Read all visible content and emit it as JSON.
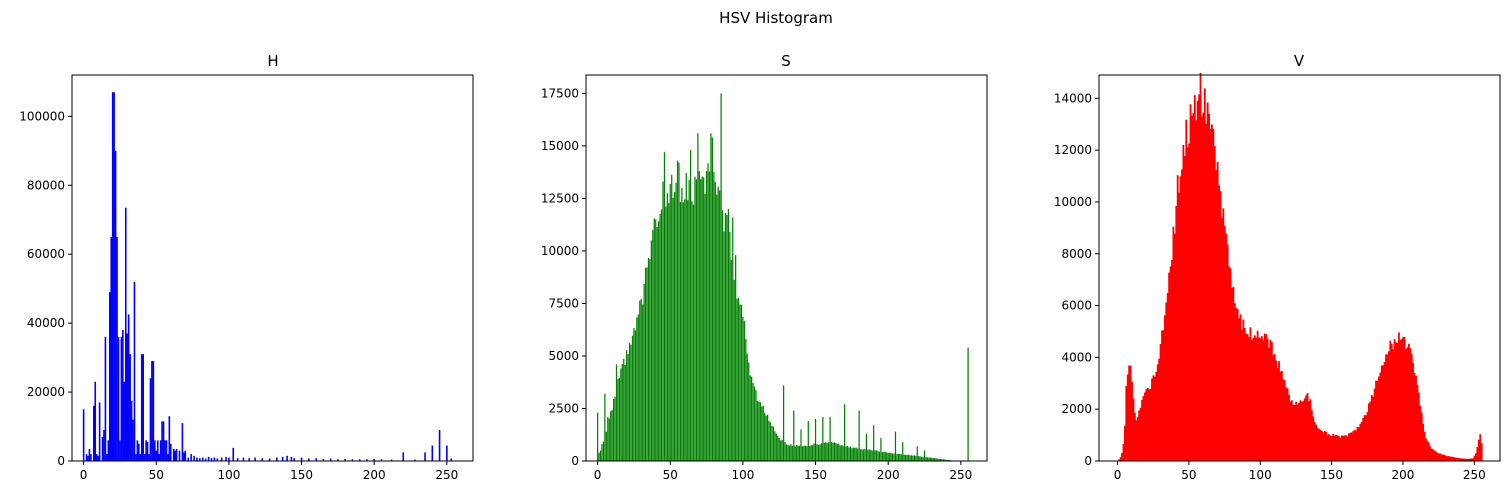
{
  "figure": {
    "suptitle": "HSV Histogram"
  },
  "chart_data": [
    {
      "type": "bar",
      "title": "H",
      "color": "#0000ff",
      "xlabel": "",
      "ylabel": "",
      "xlim": [
        -8,
        268
      ],
      "ylim": [
        0,
        112000
      ],
      "xticks": [
        0,
        50,
        100,
        150,
        200,
        250
      ],
      "yticks": [
        0,
        20000,
        40000,
        60000,
        80000,
        100000
      ],
      "spikes": [
        [
          0,
          15000
        ],
        [
          2,
          2000
        ],
        [
          3,
          1500
        ],
        [
          4,
          3500
        ],
        [
          5,
          2000
        ],
        [
          7,
          16000
        ],
        [
          8,
          23000
        ],
        [
          9,
          2000
        ],
        [
          10,
          1500
        ],
        [
          11,
          17000
        ],
        [
          13,
          7000
        ],
        [
          14,
          9000
        ],
        [
          15,
          36000
        ],
        [
          16,
          2000
        ],
        [
          17,
          6000
        ],
        [
          18,
          49000
        ],
        [
          19,
          65000
        ],
        [
          20,
          107000
        ],
        [
          21,
          107000
        ],
        [
          22,
          90000
        ],
        [
          23,
          65000
        ],
        [
          24,
          36000
        ],
        [
          25,
          6000
        ],
        [
          26,
          36000
        ],
        [
          27,
          38000
        ],
        [
          28,
          23000
        ],
        [
          29,
          73500
        ],
        [
          30,
          37000
        ],
        [
          31,
          42500
        ],
        [
          32,
          31000
        ],
        [
          33,
          17500
        ],
        [
          34,
          12000
        ],
        [
          35,
          52000
        ],
        [
          36,
          2000
        ],
        [
          37,
          6000
        ],
        [
          38,
          5000
        ],
        [
          39,
          2000
        ],
        [
          40,
          31000
        ],
        [
          41,
          31000
        ],
        [
          42,
          2000
        ],
        [
          43,
          6000
        ],
        [
          44,
          5500
        ],
        [
          45,
          2000
        ],
        [
          46,
          24000
        ],
        [
          47,
          29000
        ],
        [
          48,
          29000
        ],
        [
          49,
          6000
        ],
        [
          50,
          3000
        ],
        [
          51,
          6000
        ],
        [
          52,
          2000
        ],
        [
          53,
          6000
        ],
        [
          54,
          11500
        ],
        [
          55,
          11500
        ],
        [
          56,
          6000
        ],
        [
          57,
          6000
        ],
        [
          58,
          2000
        ],
        [
          59,
          13000
        ],
        [
          60,
          5000
        ],
        [
          62,
          3500
        ],
        [
          63,
          3000
        ],
        [
          64,
          3500
        ],
        [
          66,
          3000
        ],
        [
          68,
          11000
        ],
        [
          69,
          2500
        ],
        [
          70,
          3000
        ],
        [
          72,
          1000
        ],
        [
          74,
          2000
        ],
        [
          76,
          1500
        ],
        [
          78,
          1000
        ],
        [
          80,
          800
        ],
        [
          82,
          1000
        ],
        [
          84,
          700
        ],
        [
          86,
          1200
        ],
        [
          88,
          800
        ],
        [
          90,
          1000
        ],
        [
          92,
          700
        ],
        [
          95,
          1000
        ],
        [
          98,
          1200
        ],
        [
          100,
          1000
        ],
        [
          103,
          3800
        ],
        [
          106,
          800
        ],
        [
          110,
          1000
        ],
        [
          114,
          800
        ],
        [
          118,
          1000
        ],
        [
          123,
          800
        ],
        [
          128,
          700
        ],
        [
          133,
          1000
        ],
        [
          137,
          1200
        ],
        [
          140,
          1500
        ],
        [
          143,
          1200
        ],
        [
          145,
          800
        ],
        [
          150,
          1000
        ],
        [
          155,
          700
        ],
        [
          160,
          800
        ],
        [
          165,
          600
        ],
        [
          170,
          700
        ],
        [
          175,
          500
        ],
        [
          180,
          600
        ],
        [
          185,
          500
        ],
        [
          190,
          500
        ],
        [
          195,
          500
        ],
        [
          200,
          600
        ],
        [
          205,
          500
        ],
        [
          212,
          400
        ],
        [
          220,
          2500
        ],
        [
          228,
          400
        ],
        [
          235,
          2500
        ],
        [
          240,
          4500
        ],
        [
          245,
          9000
        ],
        [
          250,
          4500
        ],
        [
          253,
          700
        ]
      ]
    },
    {
      "type": "bar",
      "title": "S",
      "color": "#008000",
      "xlabel": "",
      "ylabel": "",
      "xlim": [
        -8,
        268
      ],
      "ylim": [
        0,
        18375
      ],
      "xticks": [
        0,
        50,
        100,
        150,
        200,
        250
      ],
      "yticks": [
        0,
        2500,
        5000,
        7500,
        10000,
        12500,
        15000,
        17500
      ],
      "profile": [
        [
          0,
          300
        ],
        [
          2,
          500
        ],
        [
          5,
          1200
        ],
        [
          10,
          2500
        ],
        [
          15,
          4000
        ],
        [
          20,
          5000
        ],
        [
          25,
          6000
        ],
        [
          30,
          7500
        ],
        [
          35,
          9500
        ],
        [
          40,
          11500
        ],
        [
          45,
          12500
        ],
        [
          50,
          13000
        ],
        [
          55,
          12500
        ],
        [
          60,
          13000
        ],
        [
          65,
          12800
        ],
        [
          70,
          13000
        ],
        [
          75,
          13500
        ],
        [
          80,
          13000
        ],
        [
          85,
          12000
        ],
        [
          90,
          11000
        ],
        [
          95,
          8500
        ],
        [
          100,
          7000
        ],
        [
          105,
          4200
        ],
        [
          110,
          3000
        ],
        [
          115,
          2400
        ],
        [
          120,
          1700
        ],
        [
          125,
          1100
        ],
        [
          130,
          800
        ],
        [
          140,
          700
        ],
        [
          150,
          800
        ],
        [
          160,
          900
        ],
        [
          170,
          700
        ],
        [
          180,
          600
        ],
        [
          190,
          500
        ],
        [
          200,
          400
        ],
        [
          210,
          300
        ],
        [
          220,
          250
        ],
        [
          230,
          150
        ],
        [
          240,
          60
        ],
        [
          245,
          20
        ],
        [
          250,
          0
        ],
        [
          255,
          0
        ]
      ],
      "spikes": [
        [
          0,
          2300
        ],
        [
          3,
          800
        ],
        [
          5,
          3200
        ],
        [
          7,
          2100
        ],
        [
          13,
          4600
        ],
        [
          17,
          4200
        ],
        [
          25,
          5600
        ],
        [
          30,
          7000
        ],
        [
          35,
          8500
        ],
        [
          38,
          11000
        ],
        [
          40,
          11500
        ],
        [
          45,
          13300
        ],
        [
          46,
          14700
        ],
        [
          49,
          10500
        ],
        [
          53,
          12800
        ],
        [
          55,
          14300
        ],
        [
          56,
          14200
        ],
        [
          58,
          13000
        ],
        [
          60,
          12300
        ],
        [
          64,
          14800
        ],
        [
          65,
          12200
        ],
        [
          69,
          15600
        ],
        [
          70,
          13800
        ],
        [
          73,
          13500
        ],
        [
          75,
          13800
        ],
        [
          76,
          12300
        ],
        [
          78,
          15600
        ],
        [
          79,
          15400
        ],
        [
          81,
          12800
        ],
        [
          85,
          17500
        ],
        [
          90,
          12000
        ],
        [
          93,
          11600
        ],
        [
          95,
          9800
        ],
        [
          100,
          6500
        ],
        [
          105,
          2200
        ],
        [
          110,
          2800
        ],
        [
          128,
          3600
        ],
        [
          135,
          2400
        ],
        [
          140,
          1500
        ],
        [
          145,
          1900
        ],
        [
          150,
          2000
        ],
        [
          155,
          2100
        ],
        [
          160,
          2100
        ],
        [
          170,
          2700
        ],
        [
          180,
          2400
        ],
        [
          185,
          1300
        ],
        [
          190,
          1700
        ],
        [
          195,
          1100
        ],
        [
          205,
          1400
        ],
        [
          210,
          900
        ],
        [
          220,
          700
        ],
        [
          225,
          500
        ],
        [
          255,
          5400
        ]
      ]
    },
    {
      "type": "area",
      "title": "V",
      "color": "#ff0000",
      "xlabel": "",
      "ylabel": "",
      "xlim": [
        -13,
        268
      ],
      "ylim": [
        0,
        14900
      ],
      "xticks": [
        0,
        50,
        100,
        150,
        200,
        250
      ],
      "yticks": [
        0,
        2000,
        4000,
        6000,
        8000,
        10000,
        12000,
        14000
      ],
      "profile": [
        [
          0,
          0
        ],
        [
          1,
          60
        ],
        [
          2,
          150
        ],
        [
          3,
          300
        ],
        [
          4,
          700
        ],
        [
          5,
          1400
        ],
        [
          6,
          2800
        ],
        [
          7,
          3500
        ],
        [
          8,
          3600
        ],
        [
          9,
          3500
        ],
        [
          10,
          3200
        ],
        [
          11,
          2400
        ],
        [
          12,
          1800
        ],
        [
          13,
          1500
        ],
        [
          14,
          1700
        ],
        [
          16,
          2100
        ],
        [
          18,
          2500
        ],
        [
          20,
          2700
        ],
        [
          23,
          2900
        ],
        [
          26,
          3300
        ],
        [
          28,
          3800
        ],
        [
          30,
          4600
        ],
        [
          32,
          5200
        ],
        [
          34,
          6000
        ],
        [
          36,
          7000
        ],
        [
          38,
          8000
        ],
        [
          40,
          9200
        ],
        [
          42,
          10500
        ],
        [
          45,
          11800
        ],
        [
          48,
          12500
        ],
        [
          50,
          13000
        ],
        [
          53,
          13600
        ],
        [
          56,
          14100
        ],
        [
          58,
          14200
        ],
        [
          60,
          14000
        ],
        [
          62,
          13600
        ],
        [
          65,
          12700
        ],
        [
          68,
          11800
        ],
        [
          70,
          11000
        ],
        [
          72,
          10000
        ],
        [
          75,
          8800
        ],
        [
          78,
          7800
        ],
        [
          80,
          7000
        ],
        [
          83,
          6200
        ],
        [
          86,
          5500
        ],
        [
          90,
          5000
        ],
        [
          93,
          4900
        ],
        [
          97,
          4800
        ],
        [
          100,
          4850
        ],
        [
          103,
          4800
        ],
        [
          106,
          4600
        ],
        [
          110,
          4100
        ],
        [
          114,
          3500
        ],
        [
          118,
          2800
        ],
        [
          122,
          2300
        ],
        [
          126,
          2200
        ],
        [
          130,
          2300
        ],
        [
          133,
          2500
        ],
        [
          135,
          2400
        ],
        [
          137,
          1700
        ],
        [
          140,
          1300
        ],
        [
          145,
          1100
        ],
        [
          150,
          1000
        ],
        [
          155,
          950
        ],
        [
          160,
          950
        ],
        [
          165,
          1100
        ],
        [
          170,
          1400
        ],
        [
          175,
          2000
        ],
        [
          180,
          2800
        ],
        [
          185,
          3600
        ],
        [
          190,
          4300
        ],
        [
          195,
          4700
        ],
        [
          198,
          4750
        ],
        [
          200,
          4700
        ],
        [
          203,
          4500
        ],
        [
          206,
          4100
        ],
        [
          210,
          3000
        ],
        [
          213,
          1800
        ],
        [
          216,
          900
        ],
        [
          220,
          500
        ],
        [
          225,
          300
        ],
        [
          230,
          200
        ],
        [
          235,
          150
        ],
        [
          240,
          100
        ],
        [
          245,
          80
        ],
        [
          249,
          100
        ],
        [
          251,
          300
        ],
        [
          253,
          800
        ],
        [
          254,
          1000
        ],
        [
          255,
          700
        ]
      ]
    }
  ]
}
